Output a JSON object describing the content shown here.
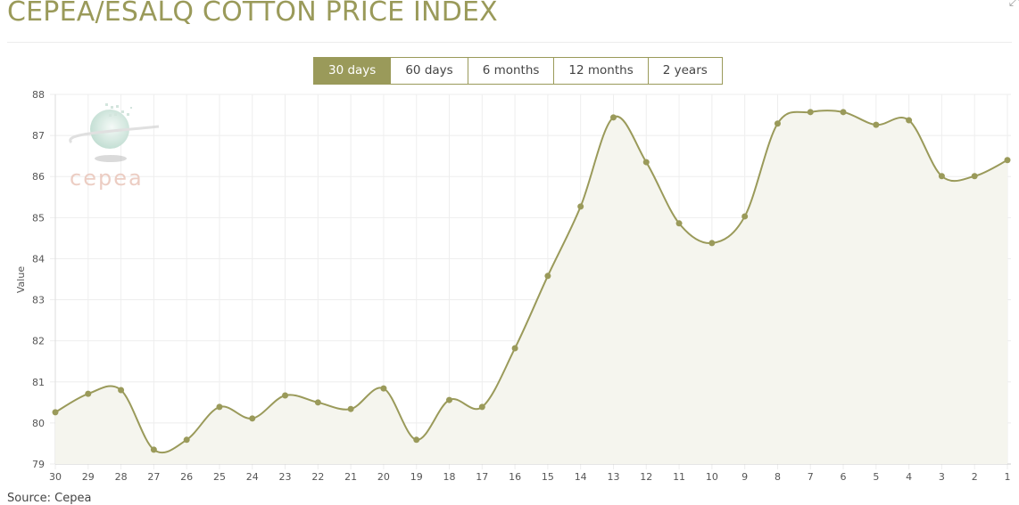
{
  "title": "CEPEA/ESALQ COTTON PRICE INDEX",
  "range_buttons": [
    {
      "label": "30 days",
      "active": true
    },
    {
      "label": "60 days",
      "active": false
    },
    {
      "label": "6 months",
      "active": false
    },
    {
      "label": "12 months",
      "active": false
    },
    {
      "label": "2 years",
      "active": false
    }
  ],
  "watermark_text": "cepea",
  "source": "Source: Cepea",
  "colors": {
    "accent": "#9a9a5a",
    "fill": "#f5f5ee",
    "grid": "#eeeeee"
  },
  "chart_data": {
    "type": "area",
    "title": "CEPEA/ESALQ COTTON PRICE INDEX",
    "xlabel": "",
    "ylabel": "Value",
    "ylim": [
      79,
      88
    ],
    "yticks": [
      79,
      80,
      81,
      82,
      83,
      84,
      85,
      86,
      87,
      88
    ],
    "grid": true,
    "categories": [
      "30",
      "29",
      "28",
      "27",
      "26",
      "25",
      "24",
      "23",
      "22",
      "21",
      "20",
      "19",
      "18",
      "17",
      "16",
      "15",
      "14",
      "13",
      "12",
      "11",
      "10",
      "9",
      "8",
      "7",
      "6",
      "5",
      "4",
      "3",
      "2",
      "1"
    ],
    "values": [
      80.26,
      80.71,
      80.8,
      79.35,
      79.59,
      80.39,
      80.11,
      80.67,
      80.5,
      80.34,
      80.84,
      79.59,
      80.56,
      80.39,
      81.82,
      83.58,
      85.27,
      87.44,
      86.35,
      84.86,
      84.38,
      85.03,
      87.29,
      87.57,
      87.57,
      87.26,
      87.37,
      86.01,
      86.01,
      86.4
    ]
  }
}
